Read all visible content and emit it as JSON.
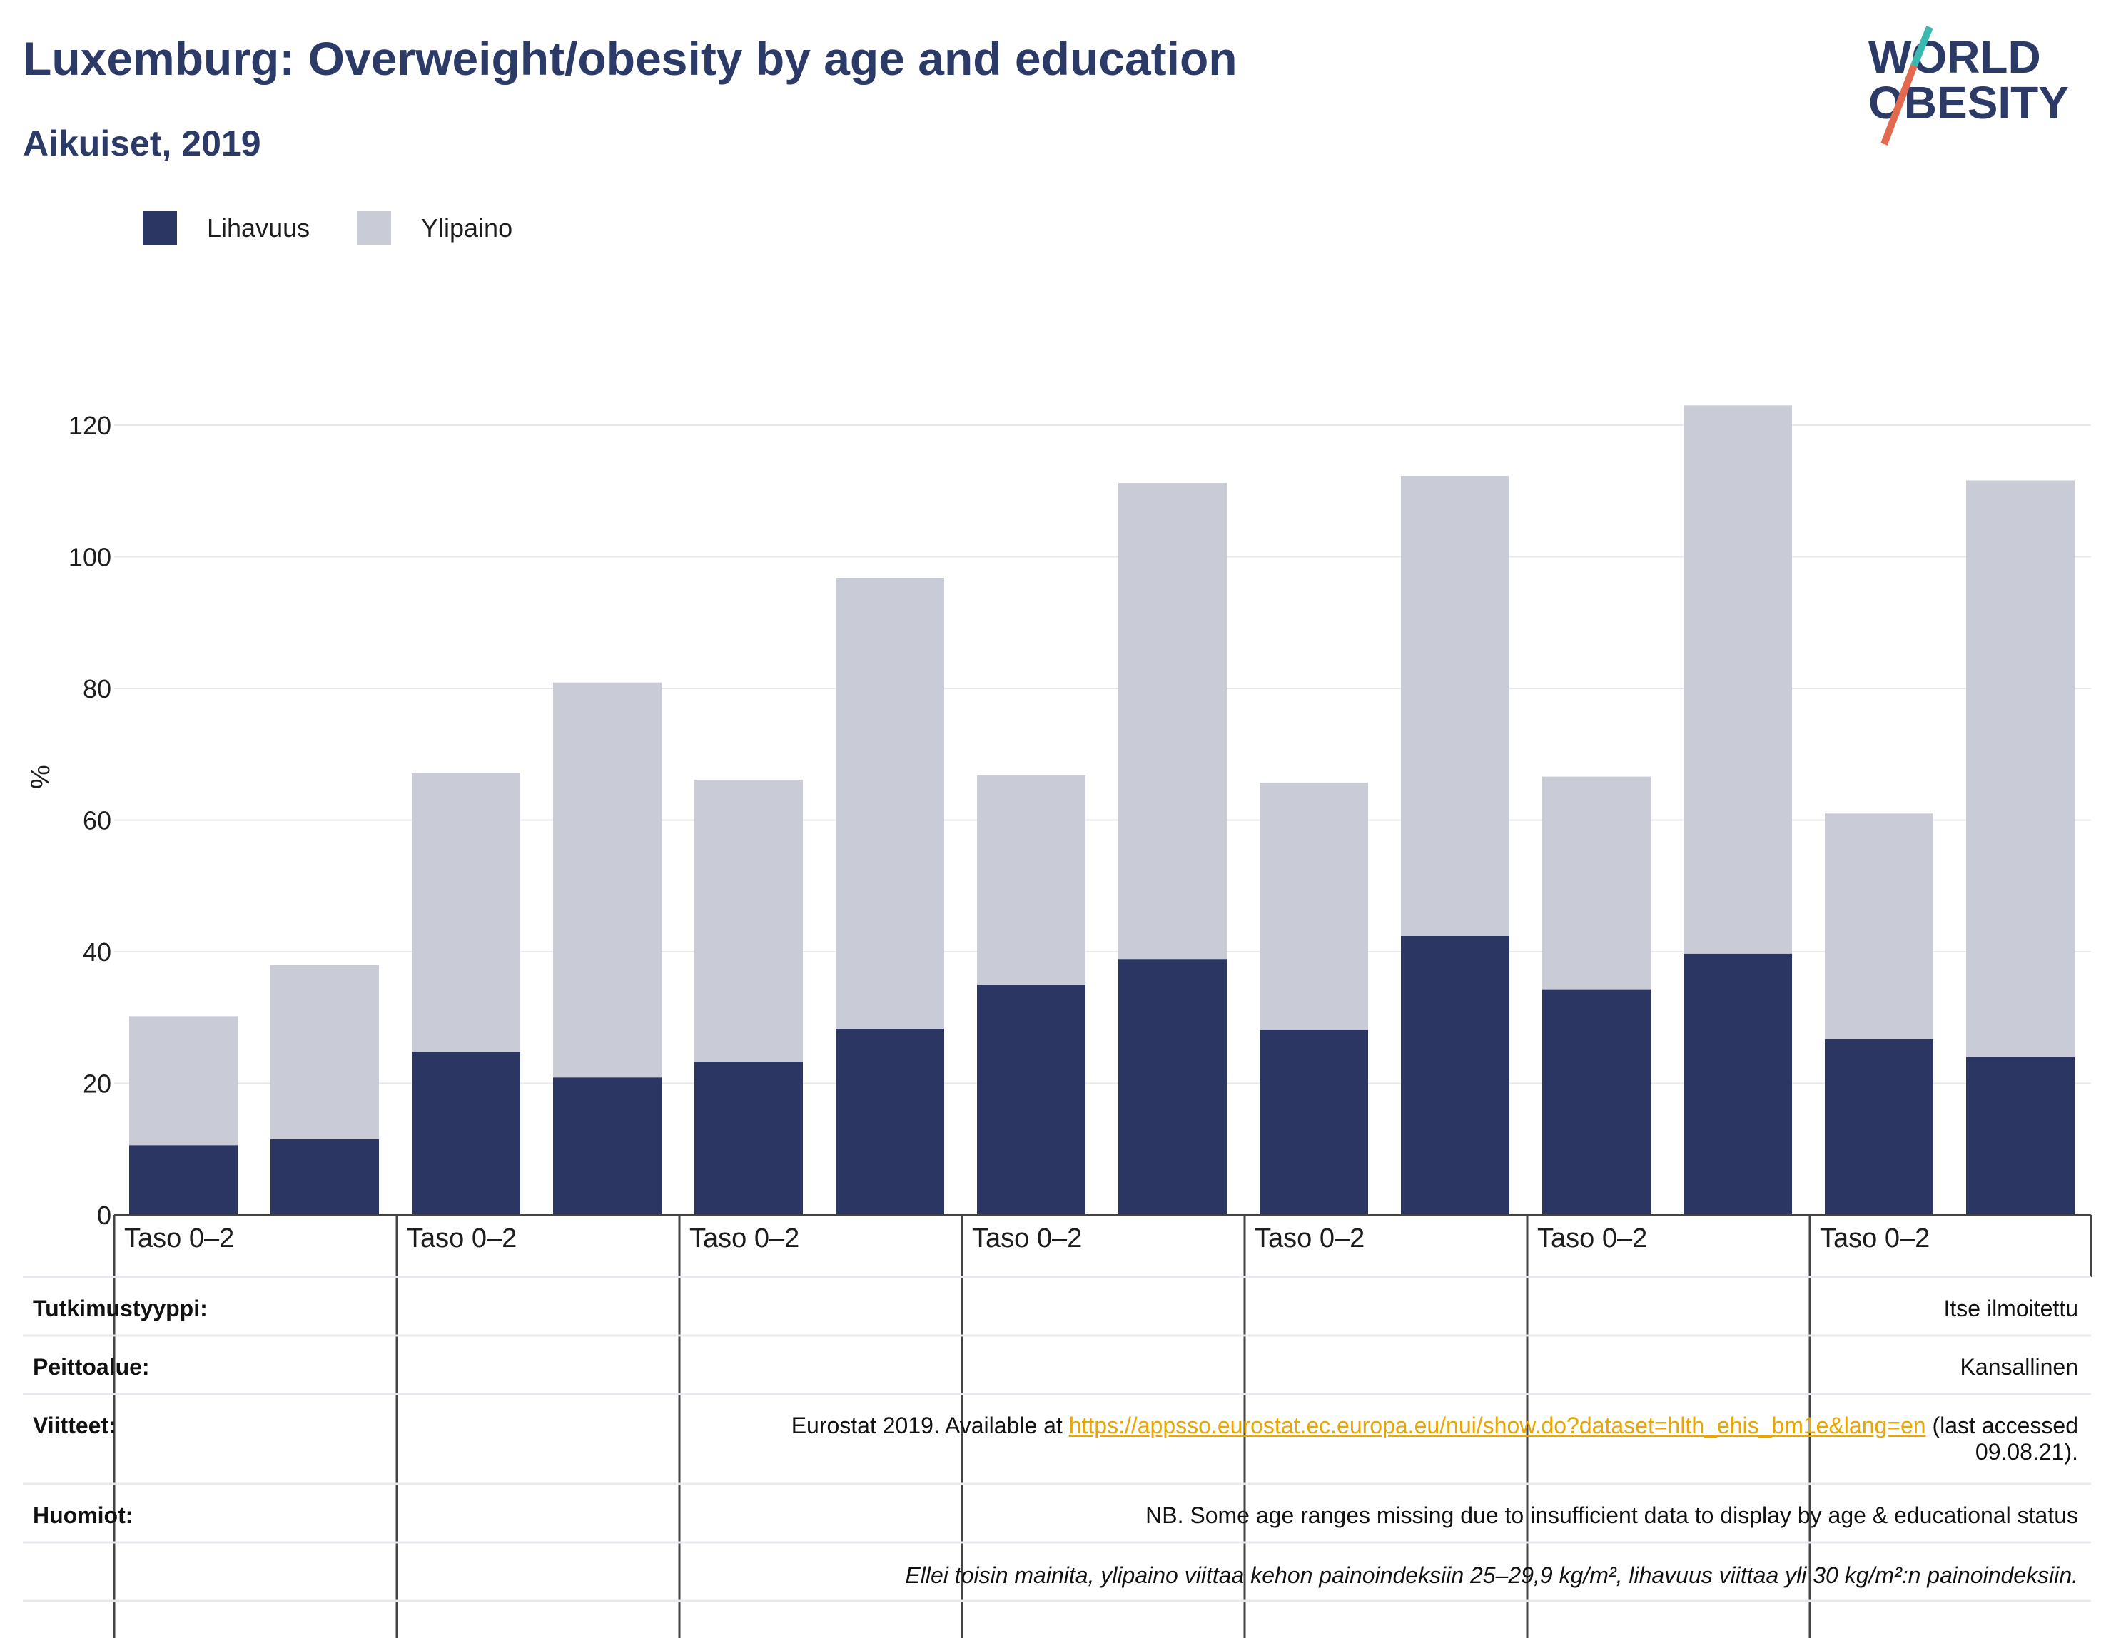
{
  "header": {
    "title": "Luxemburg: Overweight/obesity by age and education",
    "subtitle": "Aikuiset, 2019"
  },
  "logo": {
    "line1": "WORLD",
    "line2": "OBESITY",
    "icon": "world-obesity-logo"
  },
  "legend": {
    "items": [
      {
        "label": "Lihavuus",
        "color": "#2b3663"
      },
      {
        "label": "Ylipaino",
        "color": "#c9cbd6"
      }
    ]
  },
  "table": {
    "rows": [
      {
        "label": "Tutkimustyyppi:",
        "value": "Itse ilmoitettu"
      },
      {
        "label": "Peittoalue:",
        "value": "Kansallinen"
      },
      {
        "label": "Viitteet:",
        "value_prefix": "Eurostat 2019. Available at ",
        "link": "https://appsso.eurostat.ec.europa.eu/nui/show.do?dataset=hlth_ehis_bm1e&lang=en",
        "value_suffix": " (last accessed",
        "value_line2": "09.08.21)."
      },
      {
        "label": "Huomiot:",
        "value": "NB. Some age ranges missing due to insufficient data to display by age & educational status"
      },
      {
        "label": "",
        "value": "Ellei toisin mainita, ylipaino viittaa kehon painoindeksiin 25–29,9 kg/m², lihavuus viittaa yli 30 kg/m²:n painoindeksiin."
      }
    ]
  },
  "chart_data": {
    "type": "bar",
    "stacked": true,
    "group_labels": [
      "Taso 0–2",
      "Taso 0–2",
      "Taso 0–2",
      "Taso 0–2",
      "Taso 0–2",
      "Taso 0–2",
      "Taso 0–2"
    ],
    "categories": [
      "",
      "",
      "",
      "",
      "",
      "",
      "",
      "",
      "",
      "",
      "",
      "",
      "",
      ""
    ],
    "series": [
      {
        "name": "Lihavuus",
        "color": "#2b3663",
        "values": [
          10.6,
          11.5,
          24.8,
          20.9,
          23.3,
          28.3,
          35.0,
          38.9,
          28.1,
          42.4,
          34.3,
          39.7,
          26.7,
          24.0
        ]
      },
      {
        "name": "Ylipaino",
        "color": "#c9cbd6",
        "values": [
          19.6,
          26.5,
          42.3,
          60.0,
          42.8,
          68.5,
          31.8,
          72.3,
          37.6,
          69.9,
          32.3,
          83.3,
          34.3,
          87.6
        ]
      }
    ],
    "ylabel": "%",
    "xlabel": "",
    "ylim": [
      0,
      128
    ],
    "yticks": [
      0,
      20,
      40,
      60,
      80,
      100,
      120
    ],
    "grid": true,
    "legend_position": "top-left"
  }
}
